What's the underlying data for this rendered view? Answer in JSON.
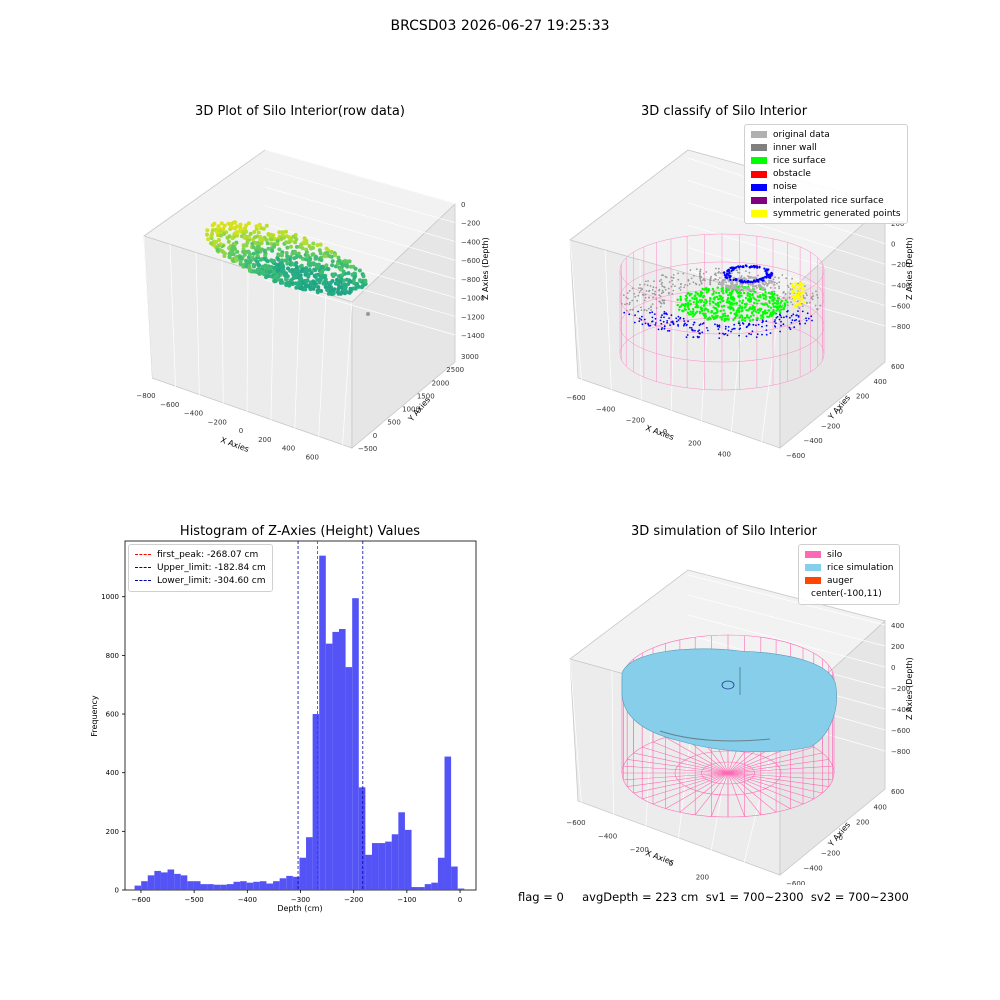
{
  "page": {
    "suptitle": "BRCSD03 2026-06-27 19:25:33",
    "footer": "flag = 0     avgDepth = 223 cm  sv1 = 700~2300  sv2 = 700~2300"
  },
  "chart_data": [
    {
      "type": "scatter",
      "projection": "3d",
      "title": "3D Plot of Silo Interior(row data)",
      "xlabel": "X Axies",
      "ylabel": "Y Axies",
      "zlabel": "Z Axies (Depth)",
      "xticks": [
        "−800",
        "−600",
        "−400",
        "−200",
        "0",
        "200",
        "400",
        "600",
        "800"
      ],
      "yticks": [
        "−500",
        "0",
        "500",
        "1000",
        "1500",
        "2000",
        "2500",
        "3000"
      ],
      "zticks": [
        "0",
        "−200",
        "−400",
        "−600",
        "−800",
        "−1000",
        "−1200",
        "−1400"
      ],
      "xlim": [
        -800,
        800
      ],
      "ylim": [
        -500,
        3000
      ],
      "zlim": [
        -1400,
        0
      ],
      "colormap": "viridis (by depth)",
      "grid": true
    },
    {
      "type": "scatter",
      "projection": "3d",
      "title": "3D classify of Silo Interior",
      "xlabel": "X Axies",
      "ylabel": "Y Axies",
      "zlabel": "Z Axies (Depth)",
      "xticks": [
        "−600",
        "−400",
        "−200",
        "0",
        "200",
        "400",
        "600"
      ],
      "yticks": [
        "−600",
        "−400",
        "−200",
        "0",
        "200",
        "400",
        "600"
      ],
      "zticks": [
        "200",
        "0",
        "−200",
        "−400",
        "−600",
        "−800"
      ],
      "xlim": [
        -600,
        600
      ],
      "ylim": [
        -600,
        600
      ],
      "zlim": [
        -800,
        200
      ],
      "legend_position": "top-right",
      "legend": [
        {
          "label": "original data",
          "color": "#b0b0b0"
        },
        {
          "label": "inner wall",
          "color": "#808080"
        },
        {
          "label": "rice surface",
          "color": "#00ff00"
        },
        {
          "label": "obstacle",
          "color": "#ff0000"
        },
        {
          "label": "noise",
          "color": "#0000ff"
        },
        {
          "label": "interpolated rice surface",
          "color": "#800080"
        },
        {
          "label": "symmetric generated points",
          "color": "#ffff00"
        }
      ],
      "grid": true
    },
    {
      "type": "bar",
      "title": "Histogram of Z-Axies (Height) Values",
      "xlabel": "Depth (cm)",
      "ylabel": "Frequency",
      "xlim": [
        -630,
        30
      ],
      "ylim": [
        0,
        1190
      ],
      "xticks": [
        -600,
        -500,
        -400,
        -300,
        -200,
        -100,
        0
      ],
      "yticks": [
        0,
        200,
        400,
        600,
        800,
        1000
      ],
      "bin_width": 12.4,
      "bin_start": -612,
      "counts": [
        15,
        30,
        50,
        65,
        60,
        70,
        55,
        50,
        30,
        30,
        20,
        20,
        18,
        18,
        20,
        28,
        30,
        25,
        28,
        30,
        22,
        30,
        40,
        48,
        45,
        110,
        180,
        600,
        1140,
        840,
        880,
        890,
        760,
        995,
        350,
        120,
        160,
        160,
        165,
        190,
        265,
        205,
        10,
        10,
        20,
        25,
        110,
        455,
        80,
        5
      ],
      "bar_color": "#4a4af5",
      "lines": [
        {
          "label": "first_peak: -268.07 cm",
          "x": -268.07,
          "color": "#ff0000"
        },
        {
          "label": "Upper_limit: -182.84 cm",
          "x": -182.84,
          "color": "#0000aa"
        },
        {
          "label": "Lower_limit: -304.60 cm",
          "x": -304.6,
          "color": "#0000aa"
        }
      ],
      "legend_position": "top-left"
    },
    {
      "type": "surface",
      "projection": "3d",
      "title": "3D simulation of Silo Interior",
      "xlabel": "X Axies",
      "ylabel": "Y Axies",
      "zlabel": "Z Axies (Depth)",
      "xticks": [
        "−600",
        "−400",
        "−200",
        "0",
        "200",
        "400"
      ],
      "yticks": [
        "−600",
        "−400",
        "−200",
        "0",
        "200",
        "400",
        "600"
      ],
      "zticks": [
        "400",
        "200",
        "0",
        "−200",
        "−400",
        "−600",
        "−800"
      ],
      "xlim": [
        -600,
        400
      ],
      "ylim": [
        -600,
        600
      ],
      "zlim": [
        -800,
        400
      ],
      "legend_position": "top-right",
      "legend": [
        {
          "label": "silo",
          "color": "#ff69b4"
        },
        {
          "label": "rice simulation",
          "color": "#87ceeb"
        },
        {
          "label": "auger",
          "color": "#ff4500"
        },
        {
          "label": "center(-100,11)",
          "color": ""
        }
      ],
      "grid": true
    }
  ]
}
